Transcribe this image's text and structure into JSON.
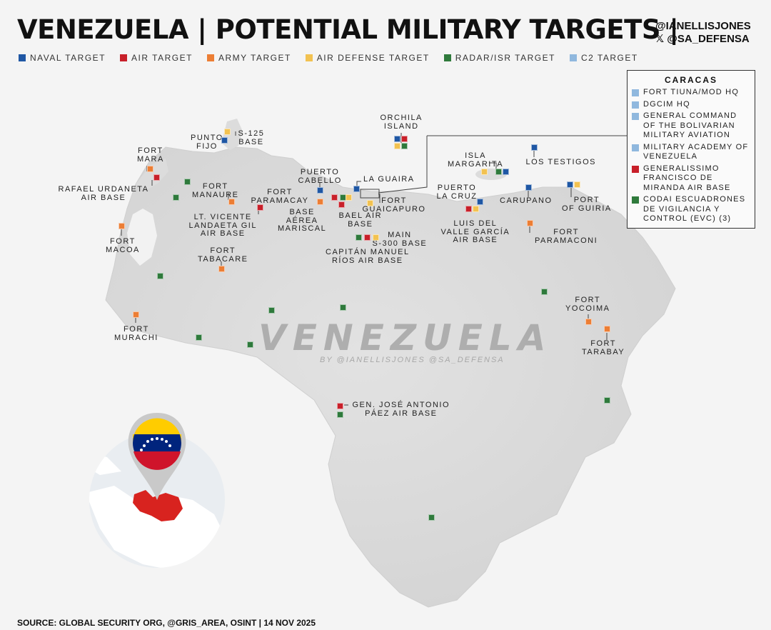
{
  "title": "VENEZUELA | POTENTIAL MILITARY TARGETS |",
  "handles": [
    "@IANELLISJONES",
    "𝕏 @SA_DEFENSA"
  ],
  "colors": {
    "naval": "#1f57a4",
    "air": "#c8202a",
    "army": "#ec7e35",
    "air_defense": "#f2c251",
    "radar": "#2f7a3c",
    "c2": "#90b8de"
  },
  "legend": [
    {
      "label": "NAVAL TARGET",
      "type": "naval"
    },
    {
      "label": "AIR TARGET",
      "type": "air"
    },
    {
      "label": "ARMY TARGET",
      "type": "army"
    },
    {
      "label": "AIR DEFENSE TARGET",
      "type": "air_defense"
    },
    {
      "label": "RADAR/ISR TARGET",
      "type": "radar"
    },
    {
      "label": "C2 TARGET",
      "type": "c2"
    }
  ],
  "caracas": {
    "title": "CARACAS",
    "items": [
      {
        "label": "FORT TIUNA/MOD HQ",
        "type": "c2"
      },
      {
        "label": "DGCIM HQ",
        "type": "c2"
      },
      {
        "label": "GENERAL COMMAND OF THE BOLIVARIAN MILITARY AVIATION",
        "type": "c2"
      },
      {
        "label": "MILITARY ACADEMY OF VENEZUELA",
        "type": "c2"
      },
      {
        "label": "GENERALISSIMO FRANCISCO DE MIRANDA AIR BASE",
        "type": "air"
      },
      {
        "label": "CODAI ESCUADRONES DE VIGILANCIA Y CONTROL (EVC) (3)",
        "type": "radar"
      }
    ]
  },
  "watermark": "VENEZUELA",
  "watermark_credit": "BY @IANELLISJONES @SA_DEFENSA",
  "source": "SOURCE: GLOBAL SECURITY ORG, @GRIS_AREA, OSINT | 14 NOV 2025",
  "labels": [
    {
      "text": "ORCHILA\nISLAND"
    },
    {
      "text": "PUNTO\nFIJO"
    },
    {
      "text": "S-125\nBASE"
    },
    {
      "text": "FORT\nMARA"
    },
    {
      "text": "RAFAEL URDANETA\nAIR BASE"
    },
    {
      "text": "FORT\nMANAURE"
    },
    {
      "text": "PUERTO\nCABELLO"
    },
    {
      "text": "LA GUAIRA"
    },
    {
      "text": "FORT\nPARAMACAY"
    },
    {
      "text": "BASE\nAÉREA\nMARISCAL"
    },
    {
      "text": "BAEL AIR\nBASE"
    },
    {
      "text": "FORT\nGUAICAPURO"
    },
    {
      "text": "LT. VICENTE\nLANDAETA GIL\nAIR BASE"
    },
    {
      "text": "FORT\nMACOA"
    },
    {
      "text": "FORT\nTABACARE"
    },
    {
      "text": "MAIN\nS-300 BASE"
    },
    {
      "text": "CAPITÁN MANUEL\nRÍOS AIR BASE"
    },
    {
      "text": "ISLA\nMARGARITA"
    },
    {
      "text": "LOS TESTIGOS"
    },
    {
      "text": "PUERTO\nLA CRUZ"
    },
    {
      "text": "CARUPANO"
    },
    {
      "text": "PORT\nOF GUIRIA"
    },
    {
      "text": "LUIS DEL\nVALLE GARCÍA\nAIR BASE"
    },
    {
      "text": "FORT\nPARAMACONI"
    },
    {
      "text": "FORT\nYOCOIMA"
    },
    {
      "text": "FORT\nTARABAY"
    },
    {
      "text": "FORT\nMURACHI"
    },
    {
      "text": "GEN. JOSÉ ANTONIO\nPÁEZ AIR BASE"
    }
  ],
  "markers": [
    {
      "type": "naval"
    },
    {
      "type": "air"
    },
    {
      "type": "radar"
    },
    {
      "type": "air_defense"
    },
    {
      "type": "naval"
    },
    {
      "type": "air_defense"
    },
    {
      "type": "army"
    },
    {
      "type": "air"
    },
    {
      "type": "radar"
    },
    {
      "type": "radar"
    },
    {
      "type": "army"
    },
    {
      "type": "naval"
    },
    {
      "type": "naval"
    },
    {
      "type": "army"
    },
    {
      "type": "air"
    },
    {
      "type": "radar"
    },
    {
      "type": "air_defense"
    },
    {
      "type": "air"
    },
    {
      "type": "air_defense"
    },
    {
      "type": "air"
    },
    {
      "type": "army"
    },
    {
      "type": "army"
    },
    {
      "type": "radar"
    },
    {
      "type": "air"
    },
    {
      "type": "air_defense"
    },
    {
      "type": "air_defense"
    },
    {
      "type": "radar"
    },
    {
      "type": "naval"
    },
    {
      "type": "naval"
    },
    {
      "type": "naval"
    },
    {
      "type": "naval"
    },
    {
      "type": "air_defense"
    },
    {
      "type": "naval"
    },
    {
      "type": "air"
    },
    {
      "type": "air_defense"
    },
    {
      "type": "army"
    },
    {
      "type": "radar"
    },
    {
      "type": "army"
    },
    {
      "type": "army"
    },
    {
      "type": "radar"
    },
    {
      "type": "radar"
    },
    {
      "type": "radar"
    },
    {
      "type": "radar"
    },
    {
      "type": "radar"
    },
    {
      "type": "radar"
    },
    {
      "type": "army"
    },
    {
      "type": "air"
    },
    {
      "type": "radar"
    },
    {
      "type": "radar"
    }
  ]
}
